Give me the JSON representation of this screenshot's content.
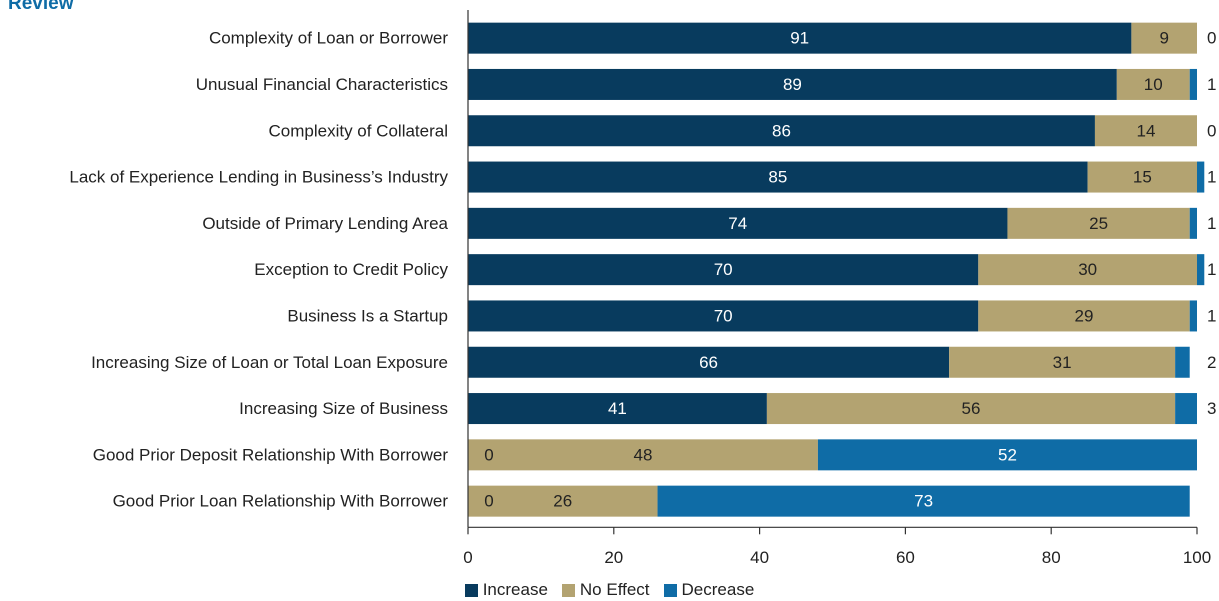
{
  "header": {
    "title": "Review"
  },
  "colors": {
    "title": "#0f6ca6",
    "increase": "#083b5e",
    "no_effect": "#b3a371",
    "decrease": "#0f6ca6",
    "text": "#222222",
    "label_light": "#ffffff"
  },
  "chart_data": {
    "type": "bar",
    "orientation": "horizontal",
    "stacked": true,
    "categories": [
      "Complexity of Loan or Borrower",
      "Unusual Financial Characteristics",
      "Complexity of Collateral",
      "Lack of Experience Lending in Business’s Industry",
      "Outside of Primary Lending Area",
      "Exception to Credit Policy",
      "Business Is a Startup",
      "Increasing Size of Loan or Total Loan Exposure",
      "Increasing Size of Business",
      "Good Prior Deposit Relationship With Borrower",
      "Good Prior Loan Relationship With Borrower"
    ],
    "series": [
      {
        "name": "Increase",
        "values": [
          91,
          89,
          86,
          85,
          74,
          70,
          70,
          66,
          41,
          0,
          0
        ]
      },
      {
        "name": "No Effect",
        "values": [
          9,
          10,
          14,
          15,
          25,
          30,
          29,
          31,
          56,
          48,
          26
        ]
      },
      {
        "name": "Decrease",
        "values": [
          0,
          1,
          0,
          1,
          1,
          1,
          1,
          2,
          3,
          52,
          73
        ]
      }
    ],
    "xlim": [
      0,
      100
    ],
    "xticks": [
      "0",
      "20",
      "40",
      "60",
      "80",
      "100"
    ],
    "grid": false,
    "legend_position": "bottom-center"
  }
}
